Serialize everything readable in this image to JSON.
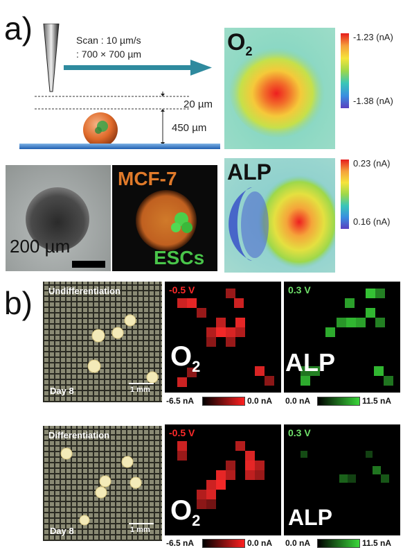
{
  "panel_a": {
    "label": "a)",
    "scan_speed": "Scan : 10 µm/s",
    "scan_area": ": 700 × 700 µm",
    "gap_label": "20 µm",
    "height_label": "450 µm",
    "brightfield_scale": "200 µm",
    "fluor_top": "MCF-7",
    "fluor_bottom": "ESCs",
    "o2_map": {
      "title": "O",
      "sub": "2",
      "max": "-1.23 (nA)",
      "min": "-1.38 (nA)"
    },
    "alp_map": {
      "title": "ALP",
      "max": "0.23 (nA)",
      "min": "0.16 (nA)"
    }
  },
  "panel_b": {
    "label": "b)",
    "rows": [
      {
        "condition": "Undifferentiation",
        "day": "Day 8",
        "scale": "1 mm",
        "o2_potential": "-0.5 V",
        "o2_label": "O",
        "o2_sub": "2",
        "alp_potential": "0.3 V",
        "alp_label": "ALP",
        "o2_cbar_min": "-6.5 nA",
        "o2_cbar_max": "0.0 nA",
        "alp_cbar_min": "0.0 nA",
        "alp_cbar_max": "11.5 nA"
      },
      {
        "condition": "Differentiation",
        "day": "Day 8",
        "scale": "1 mm",
        "o2_potential": "-0.5 V",
        "o2_label": "O",
        "o2_sub": "2",
        "alp_potential": "0.3 V",
        "alp_label": "ALP",
        "o2_cbar_min": "-6.5 nA",
        "o2_cbar_max": "0.0 nA",
        "alp_cbar_min": "0.0 nA",
        "alp_cbar_max": "11.5 nA"
      }
    ]
  },
  "colors": {
    "arrow": "#2e8a9e",
    "o2_signal": "#ff2a2a",
    "alp_signal": "#3ad63a",
    "mcf7_text": "#e07a2a",
    "esc_text": "#49c54a"
  }
}
